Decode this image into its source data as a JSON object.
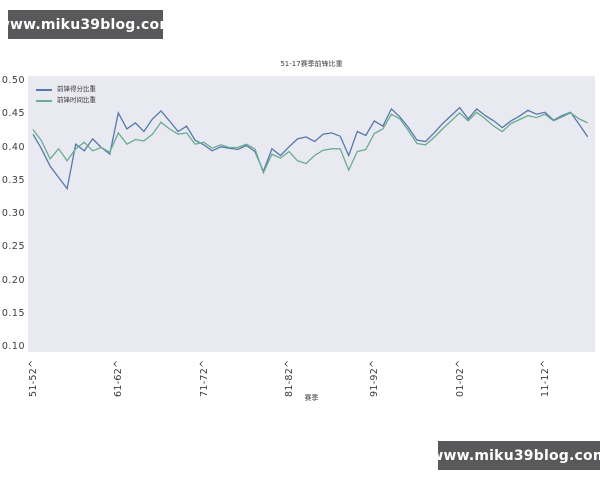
{
  "watermark": {
    "text": "www.miku39blog.com",
    "bg_color": "#59595b",
    "text_color": "#ffffff"
  },
  "chart_data": {
    "type": "line",
    "title": "51-17赛季前锋比重",
    "xlabel": "赛季",
    "ylabel": "",
    "ylim": [
      0.1,
      0.5
    ],
    "grid": false,
    "legend_position": "upper-left",
    "plot_bg": "#e9e9f1",
    "ytick_labels": [
      "0.50",
      "0.45",
      "0.40",
      "0.35",
      "0.30",
      "0.25",
      "0.20",
      "0.15",
      "0.10"
    ],
    "xtick_labels": [
      "51-52",
      "61-62",
      "71-72",
      "81-82",
      "91-92",
      "01-02",
      "11-12"
    ],
    "xtick_suffix": "^",
    "xtick_indices": [
      0,
      10,
      20,
      30,
      40,
      50,
      60
    ],
    "n_points": 66,
    "series": [
      {
        "name": "前锋得分比重",
        "color": "#5679ab",
        "values": [
          0.42,
          0.398,
          0.372,
          0.355,
          0.338,
          0.405,
          0.395,
          0.413,
          0.4,
          0.39,
          0.452,
          0.428,
          0.437,
          0.424,
          0.443,
          0.455,
          0.44,
          0.424,
          0.432,
          0.411,
          0.404,
          0.395,
          0.401,
          0.399,
          0.397,
          0.403,
          0.394,
          0.364,
          0.398,
          0.388,
          0.401,
          0.413,
          0.416,
          0.409,
          0.42,
          0.422,
          0.417,
          0.388,
          0.424,
          0.418,
          0.44,
          0.432,
          0.458,
          0.446,
          0.43,
          0.411,
          0.409,
          0.422,
          0.436,
          0.448,
          0.46,
          0.443,
          0.458,
          0.448,
          0.44,
          0.43,
          0.44,
          0.447,
          0.456,
          0.45,
          0.453,
          0.441,
          0.448,
          0.453,
          0.435,
          0.416
        ]
      },
      {
        "name": "前锋时间比重",
        "color": "#69ad8e",
        "values": [
          0.427,
          0.41,
          0.383,
          0.398,
          0.38,
          0.398,
          0.408,
          0.395,
          0.4,
          0.393,
          0.422,
          0.405,
          0.412,
          0.41,
          0.42,
          0.438,
          0.428,
          0.42,
          0.422,
          0.405,
          0.408,
          0.399,
          0.404,
          0.4,
          0.4,
          0.405,
          0.398,
          0.362,
          0.39,
          0.384,
          0.394,
          0.38,
          0.376,
          0.388,
          0.396,
          0.398,
          0.398,
          0.366,
          0.394,
          0.397,
          0.421,
          0.428,
          0.45,
          0.443,
          0.425,
          0.406,
          0.404,
          0.415,
          0.428,
          0.44,
          0.452,
          0.44,
          0.453,
          0.443,
          0.432,
          0.424,
          0.436,
          0.442,
          0.448,
          0.445,
          0.45,
          0.44,
          0.446,
          0.452,
          0.443,
          0.437
        ]
      }
    ]
  }
}
